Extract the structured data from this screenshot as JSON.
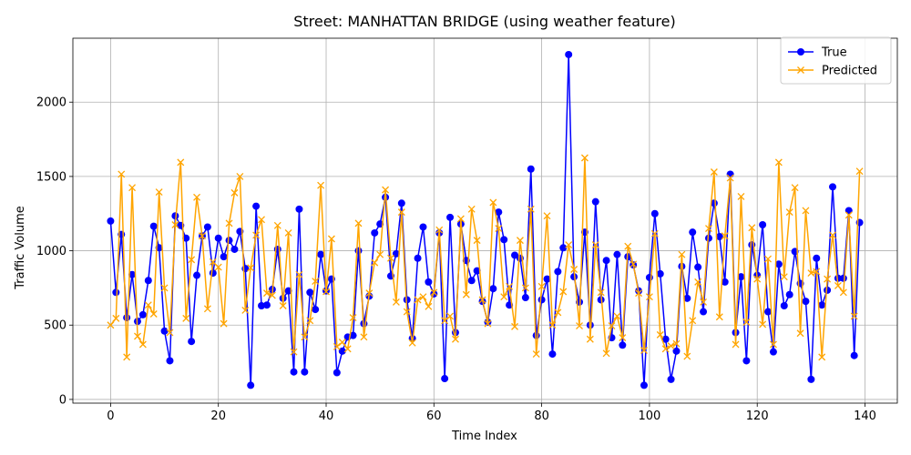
{
  "chart_data": {
    "type": "line",
    "title": "Street: MANHATTAN BRIDGE (using weather feature)",
    "xlabel": "Time Index",
    "ylabel": "Traffic Volume",
    "xlim": [
      -7,
      146
    ],
    "ylim": [
      -25,
      2430
    ],
    "xticks": [
      0,
      20,
      40,
      60,
      80,
      100,
      120,
      140
    ],
    "yticks": [
      0,
      500,
      1000,
      1500,
      2000
    ],
    "grid": true,
    "legend_position": "top-right",
    "series": [
      {
        "name": "True",
        "color": "#0000ff",
        "marker": "circle",
        "values": [
          1200,
          720,
          1110,
          550,
          840,
          525,
          570,
          800,
          1165,
          1020,
          460,
          260,
          1235,
          1170,
          1085,
          390,
          835,
          1100,
          1160,
          850,
          1085,
          960,
          1070,
          1010,
          1130,
          880,
          95,
          1300,
          630,
          635,
          740,
          1010,
          680,
          730,
          185,
          1280,
          185,
          720,
          605,
          975,
          730,
          810,
          180,
          325,
          420,
          430,
          1000,
          510,
          695,
          1120,
          1180,
          1360,
          830,
          980,
          1320,
          670,
          410,
          950,
          1160,
          790,
          710,
          1120,
          140,
          1225,
          450,
          1180,
          935,
          800,
          865,
          660,
          520,
          745,
          1260,
          1075,
          635,
          970,
          950,
          685,
          1550,
          430,
          670,
          810,
          305,
          860,
          1020,
          2320,
          825,
          655,
          1125,
          500,
          1330,
          670,
          935,
          415,
          975,
          365,
          960,
          905,
          730,
          95,
          820,
          1250,
          845,
          405,
          135,
          325,
          895,
          680,
          1125,
          890,
          590,
          1085,
          1320,
          1095,
          790,
          1515,
          450,
          825,
          260,
          1040,
          835,
          1175,
          590,
          320,
          910,
          630,
          705,
          995,
          780,
          660,
          135,
          950,
          635,
          735,
          1430,
          815,
          815,
          1270,
          295,
          1190
        ]
      },
      {
        "name": "Predicted",
        "color": "#ffa500",
        "marker": "x",
        "values": [
          500,
          545,
          1515,
          285,
          1425,
          425,
          370,
          635,
          575,
          1395,
          750,
          450,
          1175,
          1595,
          545,
          940,
          1360,
          1100,
          610,
          925,
          890,
          510,
          1185,
          1390,
          1500,
          600,
          885,
          1105,
          1210,
          715,
          700,
          1170,
          630,
          1120,
          320,
          840,
          420,
          530,
          795,
          1440,
          725,
          1080,
          355,
          385,
          340,
          550,
          1185,
          420,
          715,
          920,
          975,
          1410,
          950,
          655,
          1260,
          590,
          380,
          670,
          690,
          625,
          720,
          1140,
          530,
          560,
          405,
          1215,
          705,
          1280,
          1070,
          670,
          510,
          1325,
          1150,
          690,
          760,
          490,
          1070,
          750,
          1280,
          305,
          760,
          1235,
          500,
          585,
          725,
          1040,
          875,
          495,
          1625,
          405,
          1040,
          720,
          310,
          495,
          560,
          415,
          1030,
          910,
          715,
          330,
          690,
          1115,
          435,
          340,
          360,
          375,
          975,
          290,
          530,
          790,
          655,
          1150,
          1530,
          555,
          1100,
          1490,
          370,
          1365,
          520,
          1155,
          810,
          505,
          945,
          370,
          1595,
          825,
          1260,
          1425,
          445,
          1270,
          850,
          860,
          285,
          810,
          1105,
          765,
          720,
          1240,
          560,
          1535
        ]
      }
    ]
  }
}
